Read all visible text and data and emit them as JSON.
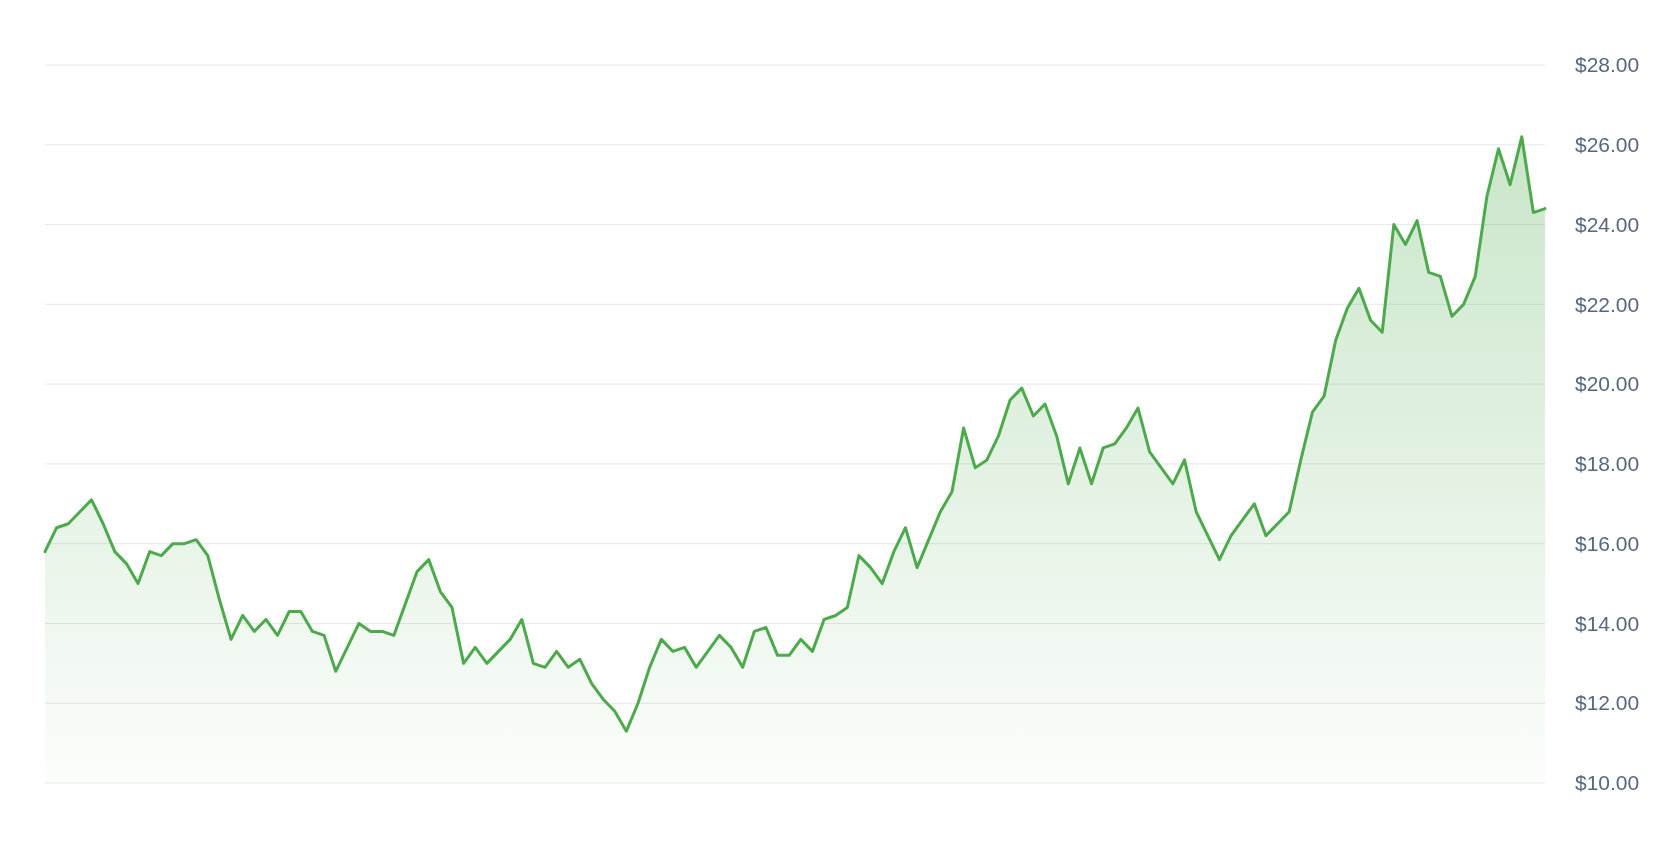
{
  "chart_data": {
    "type": "area",
    "categories": [
      null,
      null,
      null,
      null,
      null,
      null,
      null,
      null,
      null,
      null,
      null,
      null,
      null,
      null,
      null,
      null,
      null,
      null,
      null,
      null,
      null,
      null,
      null,
      null,
      null,
      null,
      null,
      null,
      null,
      null,
      null,
      null,
      null,
      null,
      null,
      null,
      null,
      null,
      null,
      null,
      null,
      null,
      null,
      null,
      null,
      null,
      null,
      null,
      null,
      null,
      null,
      null,
      null,
      null,
      null,
      null,
      null,
      null,
      null,
      null,
      null,
      null,
      null,
      null,
      null,
      null,
      null,
      null,
      null,
      null,
      null,
      null,
      null,
      null,
      null,
      null,
      null,
      null,
      null,
      null,
      null,
      null,
      null,
      null,
      null,
      null,
      null,
      null,
      null,
      null,
      null,
      null,
      null,
      null,
      null,
      null,
      null,
      null,
      null,
      null,
      null,
      null,
      null,
      null,
      null,
      null,
      null,
      null,
      null,
      null,
      null,
      null,
      null,
      null,
      null,
      null,
      null,
      null,
      null,
      null,
      null,
      null,
      null,
      null,
      null,
      null,
      null,
      null,
      null,
      null
    ],
    "series": [
      {
        "color": "#4caa4c",
        "values": [
          15.8,
          16.4,
          16.5,
          16.8,
          17.1,
          16.5,
          15.8,
          15.5,
          15.0,
          15.8,
          15.7,
          16.0,
          16.0,
          16.1,
          15.7,
          14.6,
          13.6,
          14.2,
          13.8,
          14.1,
          13.7,
          14.3,
          14.3,
          13.8,
          13.7,
          12.8,
          13.4,
          14.0,
          13.8,
          13.8,
          13.7,
          14.5,
          15.3,
          15.6,
          14.8,
          14.4,
          13.0,
          13.4,
          13.0,
          13.3,
          13.6,
          14.1,
          13.0,
          12.9,
          13.3,
          12.9,
          13.1,
          12.5,
          12.1,
          11.8,
          11.3,
          12.0,
          12.9,
          13.6,
          13.3,
          13.4,
          12.9,
          13.3,
          13.7,
          13.4,
          12.9,
          13.8,
          13.9,
          13.2,
          13.2,
          13.6,
          13.3,
          14.1,
          14.2,
          14.4,
          15.7,
          15.4,
          15.0,
          15.8,
          16.4,
          15.4,
          16.1,
          16.8,
          17.3,
          18.9,
          17.9,
          18.1,
          18.7,
          19.6,
          19.9,
          19.2,
          19.5,
          18.7,
          17.5,
          18.4,
          17.5,
          18.4,
          18.5,
          18.9,
          19.4,
          18.3,
          17.9,
          17.5,
          18.1,
          16.8,
          16.2,
          15.6,
          16.2,
          16.6,
          17.0,
          16.2,
          16.5,
          16.8,
          18.1,
          19.3,
          19.7,
          21.1,
          21.9,
          22.4,
          21.6,
          21.3,
          24.0,
          23.5,
          24.1,
          22.8,
          22.7,
          21.7,
          22.0,
          22.7,
          24.7,
          25.9,
          25.0,
          26.2,
          24.3,
          24.4
        ]
      }
    ],
    "ylim": [
      10,
      28
    ],
    "yticks": [
      {
        "value": 10,
        "label": "$10.00"
      },
      {
        "value": 12,
        "label": "$12.00"
      },
      {
        "value": 14,
        "label": "$14.00"
      },
      {
        "value": 16,
        "label": "$16.00"
      },
      {
        "value": 18,
        "label": "$18.00"
      },
      {
        "value": 20,
        "label": "$20.00"
      },
      {
        "value": 22,
        "label": "$22.00"
      },
      {
        "value": 24,
        "label": "$24.00"
      },
      {
        "value": 26,
        "label": "$26.00"
      },
      {
        "value": 28,
        "label": "$28.00"
      }
    ],
    "grid": "y"
  }
}
